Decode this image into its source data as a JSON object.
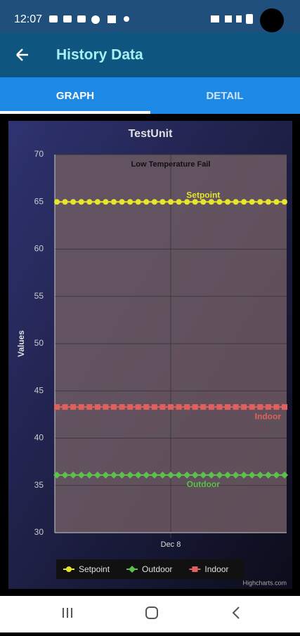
{
  "status_bar": {
    "time": "12:07"
  },
  "app_bar": {
    "title": "History Data"
  },
  "tabs": [
    "GRAPH",
    "DETAIL"
  ],
  "chart_data": {
    "type": "line",
    "title": "TestUnit",
    "annotation": "Low Temperature Fail",
    "y_label": "Values",
    "categories": [
      null,
      null,
      null,
      null,
      null,
      null,
      null,
      null,
      null,
      null,
      null,
      null,
      null,
      null,
      "Dec 8",
      null,
      null,
      null,
      null,
      null,
      null,
      null,
      null,
      null,
      null,
      null,
      null,
      null,
      null
    ],
    "series": [
      {
        "name": "Setpoint",
        "color": "#e6e62a",
        "marker": "circle",
        "values": [
          65,
          65,
          65,
          65,
          65,
          65,
          65,
          65,
          65,
          65,
          65,
          65,
          65,
          65,
          65,
          65,
          65,
          65,
          65,
          65,
          65,
          65,
          65,
          65,
          65,
          65,
          65,
          65,
          65
        ]
      },
      {
        "name": "Outdoor",
        "color": "#5cc04a",
        "marker": "diamond",
        "values": [
          36.1,
          36.1,
          36.1,
          36.1,
          36.1,
          36.1,
          36.1,
          36.1,
          36.1,
          36.1,
          36.1,
          36.1,
          36.1,
          36.1,
          36.1,
          36.1,
          36.1,
          36.1,
          36.1,
          36.1,
          36.1,
          36.1,
          36.1,
          36.1,
          36.1,
          36.1,
          36.1,
          36.1,
          36.1
        ]
      },
      {
        "name": "Indoor",
        "color": "#e0605e",
        "marker": "square",
        "values": [
          43.3,
          43.3,
          43.3,
          43.3,
          43.3,
          43.3,
          43.3,
          43.3,
          43.3,
          43.3,
          43.3,
          43.3,
          43.3,
          43.3,
          43.3,
          43.3,
          43.3,
          43.3,
          43.3,
          43.3,
          43.3,
          43.3,
          43.3,
          43.3,
          43.3,
          43.3,
          43.3,
          43.3,
          43.3
        ]
      }
    ],
    "ylim": [
      30,
      70
    ],
    "yticks": [
      30,
      35,
      40,
      45,
      50,
      55,
      60,
      65,
      70
    ],
    "grid": true,
    "legend": "bottom",
    "credit": "Highcharts.com"
  }
}
